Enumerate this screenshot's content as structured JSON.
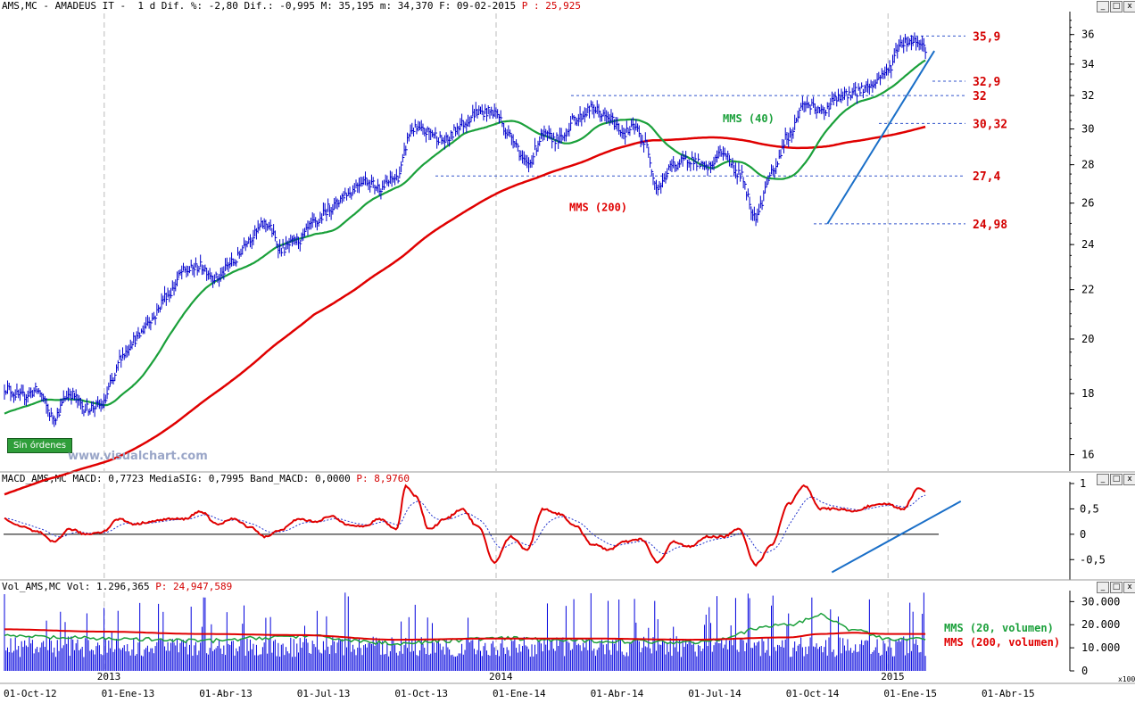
{
  "headers": {
    "price": "AMS,MC - AMADEUS IT -  1 d Dif. %: -2,80 Dif.: -0,995 M: 35,195 m: 34,370 F: 09-02-2015 ",
    "price_p": "P : 25,925",
    "macd": "MACD_AMS,MC MACD: 0,7723 MediaSIG: 0,7995 Band_MACD: 0,0000 ",
    "macd_p": "P: 8,9760",
    "vol": "Vol_AMS,MC Vol: 1.296,365 ",
    "vol_p": "P: 24,947,589"
  },
  "badge": "Sin órdenes",
  "watermark": "www.visualchart.com",
  "window_controls": [
    "_",
    "□",
    "x"
  ],
  "x_axis": {
    "date_labels": [
      "01-Oct-12",
      "01-Ene-13",
      "01-Abr-13",
      "01-Jul-13",
      "01-Oct-13",
      "01-Ene-14",
      "01-Abr-14",
      "01-Jul-14",
      "01-Oct-14",
      "01-Ene-15",
      "01-Abr-15"
    ],
    "year_labels": [
      "2013",
      "2014",
      "2015"
    ],
    "scale_note": "x100"
  },
  "colors": {
    "price": "#0000cc",
    "mms40": "#1aa03a",
    "mms200": "#e00000",
    "trend": "#1a6fc8",
    "level": "#3355cc",
    "label": "#d40000",
    "signal": "#2233cc",
    "volume": "#0000dd"
  },
  "chart_data": [
    {
      "type": "line",
      "panel": "price",
      "scale": "log",
      "ylim": [
        15.5,
        37.5
      ],
      "y_ticks": [
        16,
        18,
        20,
        22,
        24,
        26,
        28,
        30,
        32,
        34,
        36
      ],
      "price_anchors_x_months": [
        0,
        0.5,
        1,
        1.5,
        2,
        2.5,
        3,
        3.3,
        3.6,
        4,
        4.5,
        5,
        5.5,
        6,
        6.5,
        7,
        7.5,
        8,
        8.5,
        9,
        9.5,
        10,
        10.5,
        11,
        11.5,
        12,
        12.5,
        13,
        13.5,
        14,
        14.5,
        15,
        15.5,
        16,
        16.5,
        17,
        17.5,
        18,
        18.5,
        19,
        19.3,
        19.6,
        20,
        20.5,
        21,
        21.5,
        22,
        22.5,
        23,
        23.5,
        24,
        24.5,
        25,
        25.5,
        26,
        26.5,
        27,
        27.5,
        28,
        28.2
      ],
      "price_anchors_y": [
        18.2,
        17.9,
        18.1,
        17.2,
        18.0,
        17.5,
        17.6,
        18.4,
        19.4,
        20.0,
        20.8,
        21.8,
        22.8,
        23.0,
        22.5,
        23.2,
        24.3,
        25.0,
        23.8,
        24.2,
        25.0,
        25.8,
        26.5,
        27.2,
        26.8,
        27.3,
        30.0,
        29.8,
        29.3,
        30.3,
        31.0,
        31.0,
        29.6,
        28.0,
        29.6,
        29.4,
        30.6,
        31.2,
        30.6,
        29.8,
        30.1,
        29.2,
        26.8,
        28.0,
        28.3,
        27.8,
        28.7,
        27.5,
        25.4,
        27.5,
        29.6,
        31.5,
        31.0,
        31.8,
        32.2,
        32.6,
        33.5,
        35.5,
        35.6,
        35.1
      ],
      "series": [
        {
          "name": "MMS (40)",
          "label_y": 30.4
        },
        {
          "name": "MMS (200)",
          "label_y": 25.6
        }
      ],
      "levels": [
        {
          "label": "35,9",
          "value": 35.9
        },
        {
          "label": "32,9",
          "value": 32.9
        },
        {
          "label": "32",
          "value": 32.0
        },
        {
          "label": "30,32",
          "value": 30.32
        },
        {
          "label": "27,4",
          "value": 27.4
        },
        {
          "label": "24,98",
          "value": 24.98
        }
      ],
      "trendline": {
        "from": [
          25.2,
          24.98
        ],
        "to": [
          28.2,
          35.0
        ]
      }
    },
    {
      "type": "line",
      "panel": "macd",
      "ylim": [
        -0.9,
        1.0
      ],
      "y_ticks": [
        1,
        0.5,
        0,
        -0.5
      ],
      "y_tick_labels": [
        "1",
        "0,5",
        "0",
        "-0,5"
      ],
      "macd_anchors_x_months": [
        0,
        0.5,
        1,
        1.5,
        2,
        2.5,
        3,
        3.5,
        4,
        4.5,
        5,
        5.5,
        6,
        6.5,
        7,
        7.5,
        8,
        8.5,
        9,
        9.5,
        10,
        10.5,
        11,
        11.5,
        12,
        12.3,
        12.6,
        13,
        13.5,
        14,
        14.5,
        15,
        15.5,
        16,
        16.5,
        17,
        17.5,
        18,
        18.5,
        19,
        19.5,
        20,
        20.5,
        21,
        21.5,
        22,
        22.5,
        23,
        23.5,
        24,
        24.5,
        25,
        25.5,
        26,
        26.5,
        27,
        27.5,
        28,
        28.2
      ],
      "macd_anchors_y": [
        0.3,
        0.15,
        0.05,
        -0.15,
        0.1,
        0.0,
        0.05,
        0.3,
        0.2,
        0.25,
        0.3,
        0.3,
        0.45,
        0.2,
        0.3,
        0.15,
        -0.05,
        0.1,
        0.3,
        0.25,
        0.35,
        0.2,
        0.15,
        0.3,
        0.1,
        0.95,
        0.75,
        0.1,
        0.3,
        0.5,
        0.15,
        -0.55,
        -0.05,
        -0.3,
        0.5,
        0.4,
        0.15,
        -0.2,
        -0.3,
        -0.15,
        -0.1,
        -0.55,
        -0.15,
        -0.25,
        -0.05,
        -0.05,
        0.1,
        -0.6,
        -0.2,
        0.6,
        0.95,
        0.5,
        0.5,
        0.45,
        0.55,
        0.6,
        0.5,
        0.9,
        0.85
      ],
      "series": [
        {
          "name": "MACD"
        },
        {
          "name": "MediaSIG"
        }
      ],
      "trendline": {
        "from": [
          25.2,
          -0.75
        ],
        "to": [
          28.6,
          0.65
        ]
      }
    },
    {
      "type": "bar",
      "panel": "volume",
      "ylim": [
        0,
        34000
      ],
      "y_ticks": [
        0,
        10000,
        20000,
        30000
      ],
      "y_tick_labels": [
        "0",
        "10.000",
        "20.000",
        "30.000"
      ],
      "volume_level_months": [
        0,
        3,
        6,
        9,
        12,
        15,
        18,
        21,
        24,
        25,
        26,
        27,
        28.2
      ],
      "mms20_volume": [
        15000,
        14000,
        13000,
        15000,
        12000,
        14000,
        13000,
        12500,
        20000,
        24000,
        18000,
        14000,
        13500
      ],
      "mms200_volume": [
        18000,
        17000,
        16000,
        15500,
        13500,
        14000,
        14000,
        13500,
        14500,
        16000,
        16500,
        16000,
        16000
      ],
      "series": [
        {
          "name": "MMS (20, volumen)"
        },
        {
          "name": "MMS (200, volumen)"
        }
      ]
    }
  ]
}
